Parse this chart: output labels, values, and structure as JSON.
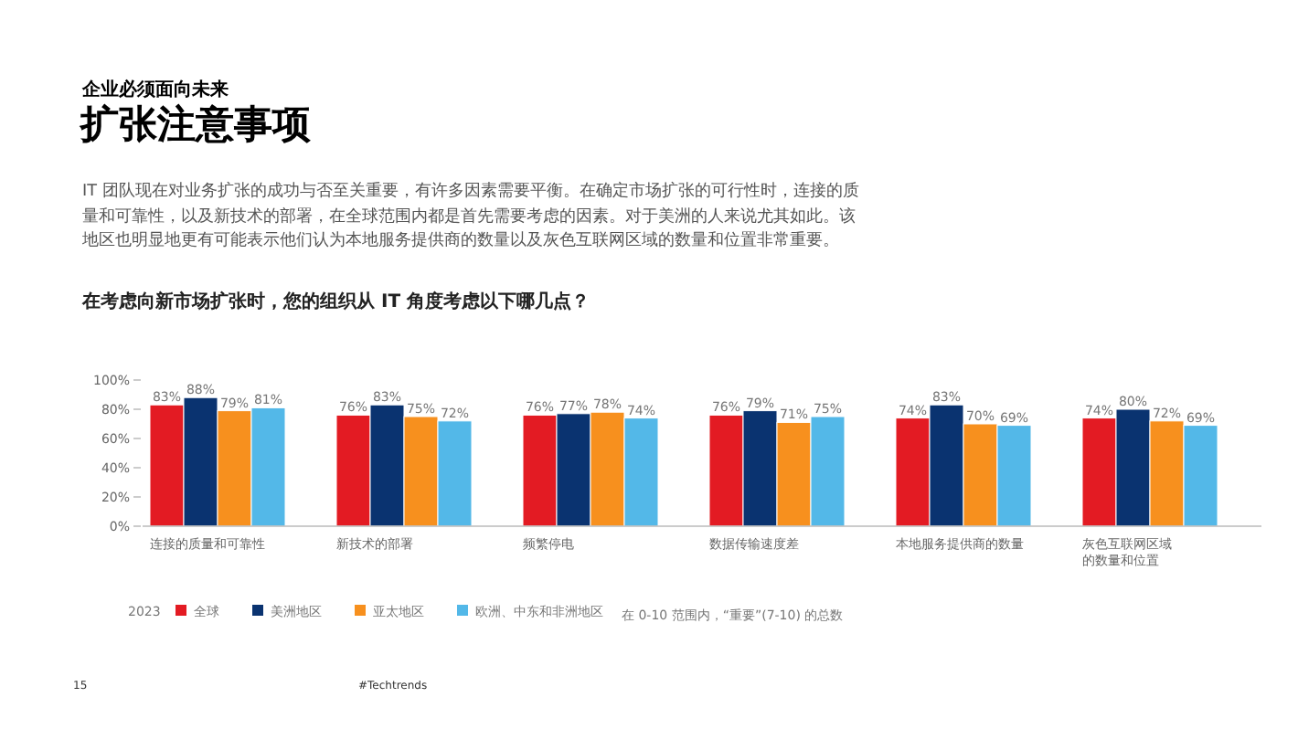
{
  "chart_data": {
    "type": "bar",
    "title": "扩张注意事项",
    "subtitle": "IT 团队现在对业务扩张的成功与否至关重要，有许多因素需要平衡。在确定市场扩张的可行性时，连接的质量和可靠性，以及新技术的部署，在全球范围内都是首先需要考虑的因素。对于美洲的人来说尤其如此。该地区也明显地更有可能表示他们认为本地服务提供商的数量以及灰色互联网区域的数量和位置非常重要。",
    "annotations": [
      "企业必须面向未来",
      "在考虑向新市场扩张时，您的组织从 IT 角度考虑以下哪几点？",
      "在 0-10 范围内，“重要”(7-10) 的总数",
      "15",
      "#Techtrends"
    ],
    "categories": [
      "连接的质量和可靠性",
      "新技术的部署",
      "频繁停电",
      "数据传输速度差",
      "本地服务提供商的数量",
      "灰色互联网区域的数量和位置"
    ],
    "legend_title": "2023",
    "series": [
      {
        "name": "全球",
        "color": "#e31b23",
        "values": [
          83,
          76,
          76,
          76,
          74,
          74
        ],
        "value_labels": [
          "83%",
          "76%",
          "76%",
          "76%",
          "74%",
          "74%"
        ]
      },
      {
        "name": "美洲地区",
        "color": "#0a3370",
        "values": [
          88,
          83,
          77,
          79,
          83,
          80
        ],
        "value_labels": [
          "88%",
          "83%",
          "77%",
          "79%",
          "83%",
          "80%"
        ]
      },
      {
        "name": "亚太地区",
        "color": "#f7901e",
        "values": [
          79,
          75,
          78,
          71,
          70,
          72
        ],
        "value_labels": [
          "79%",
          "75%",
          "78%",
          "71%",
          "70%",
          "72%"
        ]
      },
      {
        "name": "欧洲、中东和非洲地区",
        "color": "#53b8e8",
        "values": [
          81,
          72,
          74,
          75,
          69,
          69
        ],
        "value_labels": [
          "81%",
          "72%",
          "74%",
          "75%",
          "69%",
          "69%"
        ]
      }
    ],
    "ylim": [
      0,
      100
    ],
    "yticks": [
      {
        "value": 0,
        "label": "0%"
      },
      {
        "value": 20,
        "label": "20%"
      },
      {
        "value": 40,
        "label": "40%"
      },
      {
        "value": 60,
        "label": "60%"
      },
      {
        "value": 80,
        "label": "80%"
      },
      {
        "value": 100,
        "label": "100%"
      }
    ],
    "legend": "bottom"
  }
}
